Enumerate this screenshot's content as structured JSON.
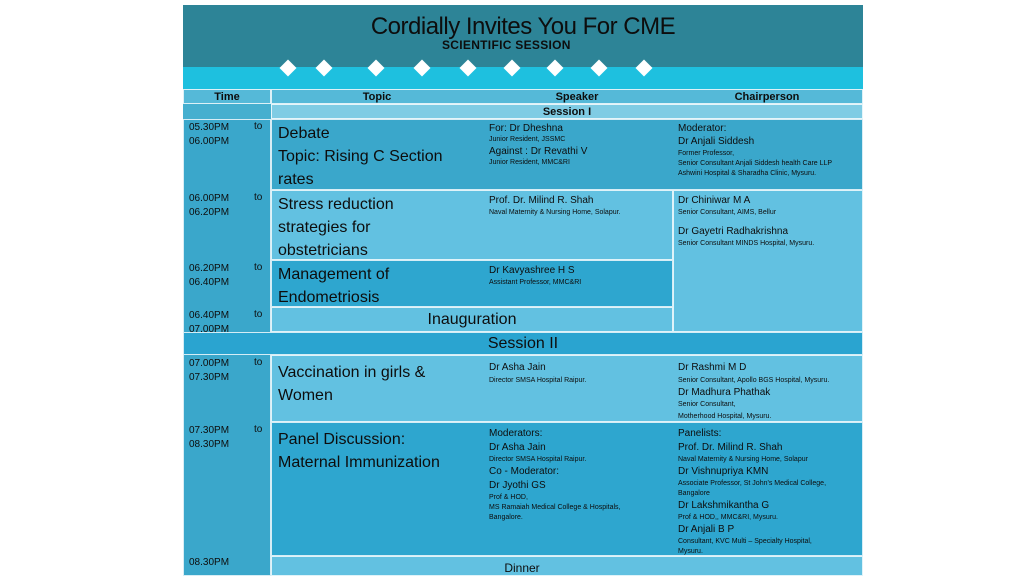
{
  "header": {
    "title": "Cordially Invites You For CME",
    "subtitle": "SCIENTIFIC SESSION"
  },
  "columns": {
    "time": "Time",
    "topic": "Topic",
    "speaker": "Speaker",
    "chair": "Chairperson"
  },
  "session1": "Session I",
  "session2": "Session II",
  "to": "to",
  "rows": [
    {
      "time1": "05.30PM",
      "time2": "06.00PM",
      "topic": [
        "Debate",
        "Topic: Rising C Section",
        "rates"
      ],
      "speaker": [
        {
          "t": "For: Dr Dheshna",
          "s": "nm"
        },
        {
          "t": "Junior Resident, JSSMC",
          "s": "sm"
        },
        {
          "t": "Against : Dr Revathi V",
          "s": "nm"
        },
        {
          "t": "Junior Resident, MMC&RI",
          "s": "sm"
        }
      ],
      "chair": [
        {
          "t": "Moderator:",
          "s": "nm"
        },
        {
          "t": "Dr Anjali Siddesh",
          "s": "nm"
        },
        {
          "t": "Former Professor,",
          "s": "sm"
        },
        {
          "t": "Senior Consultant Anjali Siddesh health Care LLP",
          "s": "sm"
        },
        {
          "t": "Ashwini Hospital & Sharadha Clinic, Mysuru.",
          "s": "sm"
        }
      ]
    },
    {
      "time1": "06.00PM",
      "time2": "06.20PM",
      "topic": [
        "Stress reduction",
        "strategies for",
        "obstetricians"
      ],
      "speaker": [
        {
          "t": "Prof. Dr. Milind R. Shah",
          "s": "nm"
        },
        {
          "t": "Naval Maternity & Nursing Home,  Solapur.",
          "s": "sm"
        }
      ],
      "chair": [
        {
          "t": "Dr Chiniwar M A",
          "s": "nm"
        },
        {
          "t": "Senior Consultant, AIMS, Bellur",
          "s": "sm"
        },
        {
          "t": "Dr Gayetri Radhakrishna",
          "s": "nm"
        },
        {
          "t": "Senior Consultant  MINDS Hospital, Mysuru.",
          "s": "sm"
        }
      ]
    },
    {
      "time1": "06.20PM",
      "time2": "06.40PM",
      "topic": [
        "Management of",
        "Endometriosis"
      ],
      "speaker": [
        {
          "t": "Dr Kavyashree H S",
          "s": "nm"
        },
        {
          "t": "Assistant Professor, MMC&RI",
          "s": "sm"
        }
      ]
    },
    {
      "time1": "06.40PM",
      "time2": "07.00PM",
      "event": "Inauguration"
    },
    {
      "time1": "07.00PM",
      "time2": "07.30PM",
      "topic": [
        "Vaccination in girls &",
        "Women"
      ],
      "speaker": [
        {
          "t": "Dr Asha Jain",
          "s": "nm"
        },
        {
          "t": "Director SMSA Hospital Raipur.",
          "s": "sm"
        }
      ],
      "chair": [
        {
          "t": "Dr Rashmi M D",
          "s": "nm"
        },
        {
          "t": "Senior Consultant, Apollo BGS Hospital, Mysuru.",
          "s": "sm"
        },
        {
          "t": "Dr Madhura Phathak",
          "s": "nm"
        },
        {
          "t": "Senior Consultant,",
          "s": "sm"
        },
        {
          "t": "Motherhood Hospital, Mysuru.",
          "s": "sm"
        }
      ]
    },
    {
      "time1": "07.30PM",
      "time2": "08.30PM",
      "topic": [
        "Panel Discussion:",
        "Maternal Immunization"
      ],
      "speaker": [
        {
          "t": "Moderators:",
          "s": "nm"
        },
        {
          "t": "Dr Asha Jain",
          "s": "nm"
        },
        {
          "t": "Director SMSA Hospital Raipur.",
          "s": "sm"
        },
        {
          "t": "Co - Moderator:",
          "s": "nm"
        },
        {
          "t": "Dr Jyothi GS",
          "s": "nm"
        },
        {
          "t": "Prof & HOD,",
          "s": "sm"
        },
        {
          "t": "MS Ramaiah Medical College & Hospitals,",
          "s": "sm"
        },
        {
          "t": "Bangalore.",
          "s": "sm"
        }
      ],
      "chair": [
        {
          "t": "Panelists:",
          "s": "nm"
        },
        {
          "t": "Prof. Dr. Milind R. Shah",
          "s": "nm"
        },
        {
          "t": "Naval Maternity & Nursing Home,  Solapur",
          "s": "sm"
        },
        {
          "t": "Dr Vishnupriya KMN",
          "s": "nm"
        },
        {
          "t": "Associate Professor, St John's Medical College,",
          "s": "sm"
        },
        {
          "t": "Bangalore",
          "s": "sm"
        },
        {
          "t": "Dr Lakshmikantha G",
          "s": "nm"
        },
        {
          "t": "Prof & HOD,, MMC&RI, Mysuru.",
          "s": "sm"
        },
        {
          "t": "Dr Anjali B P",
          "s": "nm"
        },
        {
          "t": "Consultant, KVC Multi – Specialty Hospital,",
          "s": "sm"
        },
        {
          "t": "Mysuru.",
          "s": "sm"
        }
      ]
    },
    {
      "time1": "08.30PM",
      "event": "Dinner"
    }
  ]
}
